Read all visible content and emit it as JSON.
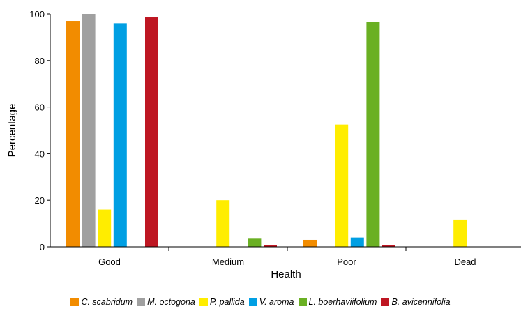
{
  "chart_data": {
    "type": "bar",
    "title": "",
    "xlabel": "Health",
    "ylabel": "Percentage",
    "categories": [
      "Good",
      "Medium",
      "Poor",
      "Dead"
    ],
    "ylim": [
      0,
      100
    ],
    "yticks": [
      0,
      20,
      40,
      60,
      80,
      100
    ],
    "grid": false,
    "legend_position": "bottom",
    "series": [
      {
        "name": "C. scabridum",
        "color": "#f28c00",
        "values": [
          97,
          0,
          3,
          0
        ]
      },
      {
        "name": "M. octogona",
        "color": "#a0a0a0",
        "values": [
          100,
          0,
          0,
          0
        ]
      },
      {
        "name": "P. pallida",
        "color": "#ffed00",
        "values": [
          16,
          20,
          52.5,
          11.7
        ]
      },
      {
        "name": "V. aroma",
        "color": "#009fe3",
        "values": [
          96,
          0,
          4,
          0
        ]
      },
      {
        "name": "L. boerhaviifolium",
        "color": "#6ab023",
        "values": [
          0,
          3.5,
          96.5,
          0
        ]
      },
      {
        "name": "B. avicennifolia",
        "color": "#be1622",
        "values": [
          98.5,
          0.8,
          0.8,
          0
        ]
      }
    ]
  }
}
